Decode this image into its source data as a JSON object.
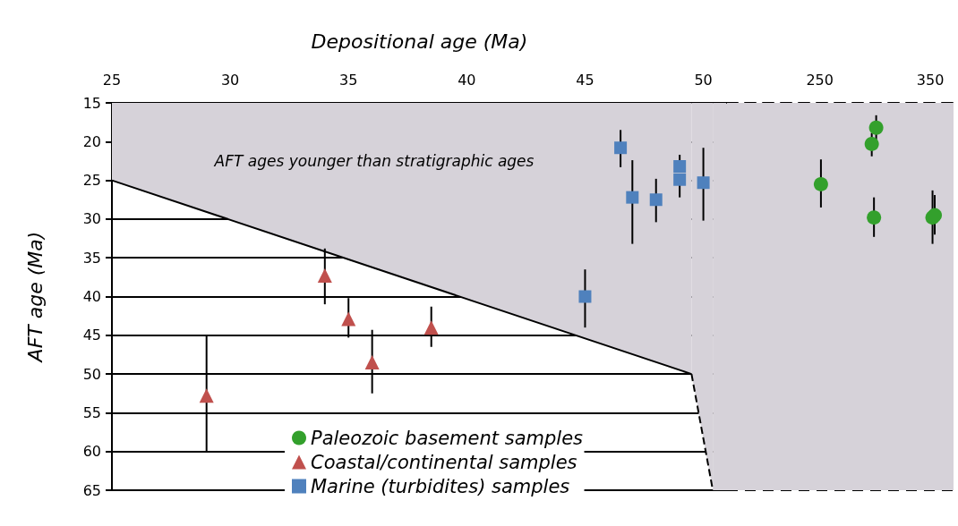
{
  "chart_data": [
    {
      "type": "scatter",
      "xlabel": "Depositional age (Ma)",
      "ylabel": "AFT age (Ma)",
      "xlim": [
        25,
        51
      ],
      "xticks": [
        25,
        30,
        35,
        40,
        45,
        50
      ],
      "ylim": [
        65,
        15
      ],
      "yticks": [
        15,
        20,
        25,
        30,
        35,
        40,
        45,
        50,
        55,
        60,
        65
      ],
      "grid": "y",
      "legend": "bottom",
      "annotations": [
        "AFT ages younger than stratigraphic ages"
      ],
      "bands": [
        {
          "axis": "x",
          "from": 50.4,
          "to": 51,
          "color": "#d6d2d9"
        }
      ],
      "series": [
        {
          "type": "area",
          "color": "#d6d2d9",
          "marker": "none",
          "line_style": "solid",
          "x": [
            25,
            49.5
          ],
          "values": [
            25,
            50
          ]
        },
        {
          "type": "area",
          "color": "#d6d2d9",
          "marker": "none",
          "line_style": "dashed",
          "x": [
            49.5,
            50.4
          ],
          "values": [
            50,
            65
          ]
        },
        {
          "name": "Coastal/continental samples",
          "color": "#c0504d",
          "marker": "triangle",
          "x": [
            29,
            34,
            35,
            36,
            38.5
          ],
          "values": [
            52.8,
            37.3,
            42.9,
            48.5,
            44.0
          ],
          "errors": [
            [
              45,
              60
            ],
            [
              33.8,
              41
            ],
            [
              40.2,
              45.3
            ],
            [
              44.3,
              52.5
            ],
            [
              41.3,
              46.5
            ]
          ]
        },
        {
          "name": "Marine (turbidites) samples",
          "color": "#4f81bd",
          "marker": "square",
          "x": [
            46.5,
            47,
            48,
            49,
            49,
            50,
            45
          ],
          "values": [
            20.8,
            27.2,
            27.5,
            23.2,
            24.9,
            25.3,
            40.0
          ],
          "errors": [
            [
              18.5,
              23.3
            ],
            [
              22.4,
              33.2
            ],
            [
              24.8,
              30.4
            ],
            [
              21.7,
              23.2
            ],
            [
              24.9,
              27.2
            ],
            [
              20.8,
              30.2
            ],
            [
              36.5,
              44
            ]
          ]
        }
      ]
    },
    {
      "type": "scatter",
      "xlim": [
        166,
        371
      ],
      "xticks": [
        250,
        350
      ],
      "ylim": [
        65,
        15
      ],
      "yticks": [
        15,
        20,
        25,
        30,
        35,
        40,
        45,
        50,
        55,
        60,
        65
      ],
      "grid": "y",
      "legend": "bottom",
      "tick_labels": "x",
      "bands": [
        {
          "axis": "x",
          "from": 166,
          "to": 371,
          "color": "#d6d2d9"
        }
      ],
      "series": [
        {
          "name": "Paleozoic basement samples",
          "color": "#33a02c",
          "marker": "circle",
          "x": [
            251,
            301,
            297,
            299,
            352,
            354
          ],
          "values": [
            25.5,
            18.2,
            20.3,
            29.8,
            29.8,
            29.5
          ],
          "errors": [
            [
              22.3,
              28.5
            ],
            [
              16.6,
              20
            ],
            [
              18.9,
              21.9
            ],
            [
              27.2,
              32.3
            ],
            [
              26.3,
              33.2
            ],
            [
              26.9,
              32
            ]
          ]
        }
      ]
    }
  ]
}
